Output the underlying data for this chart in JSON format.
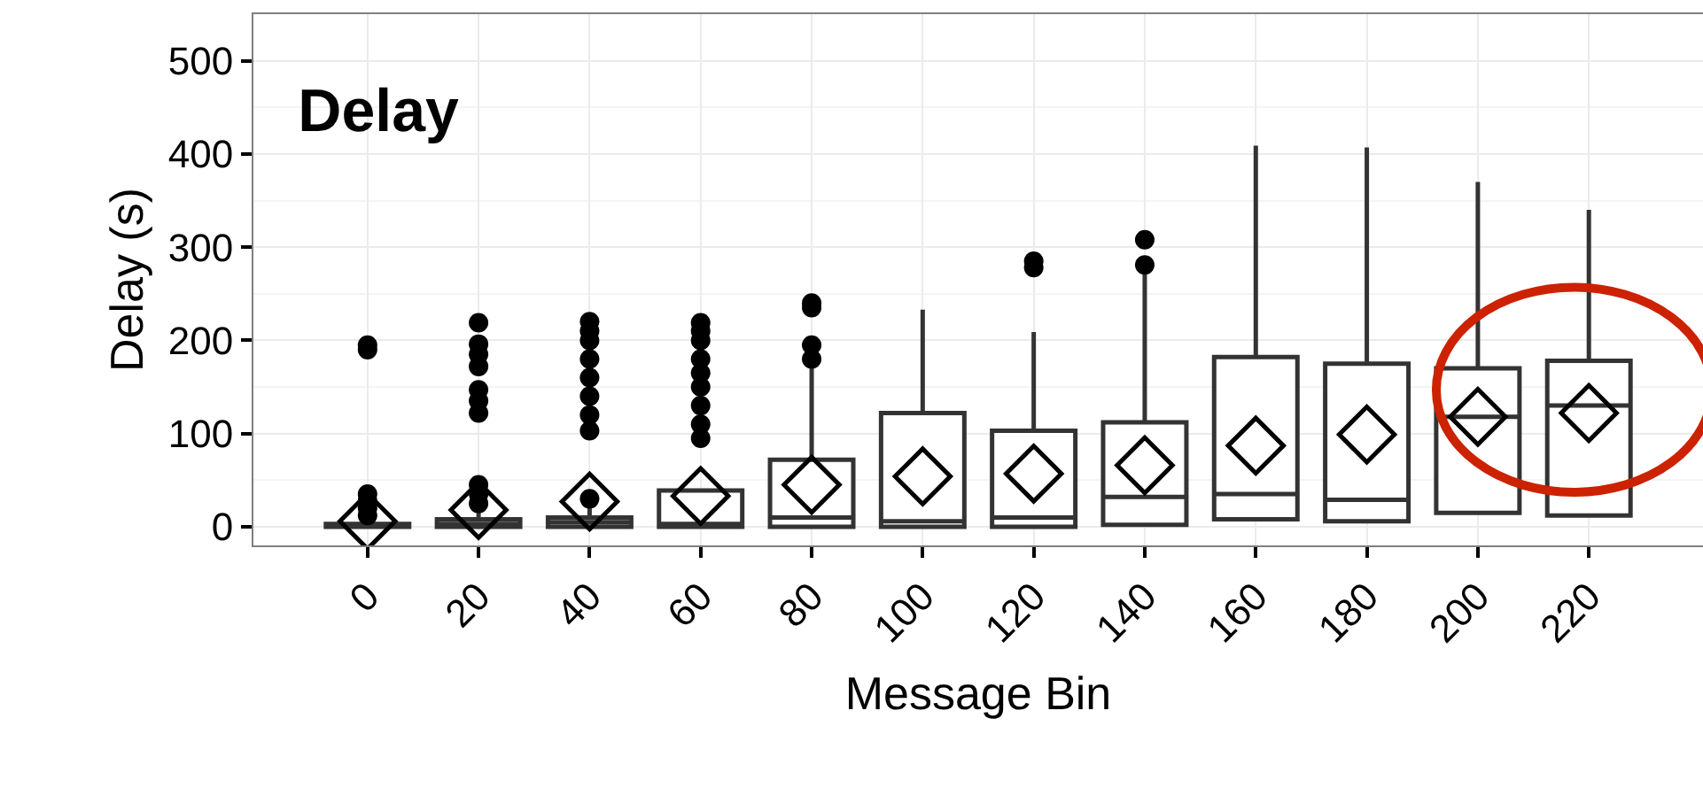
{
  "chart_data": {
    "type": "box",
    "title": "Delay",
    "xlabel": "Message Bin",
    "ylabel": "Delay (s)",
    "categories": [
      "0",
      "20",
      "40",
      "60",
      "80",
      "100",
      "120",
      "140",
      "160",
      "180",
      "200",
      "220"
    ],
    "boxes": [
      {
        "low": 0,
        "q1": 0,
        "median": 0,
        "q3": 3,
        "high": 10,
        "mean": 6,
        "outliers": [
          12,
          20,
          28,
          35,
          190,
          195
        ]
      },
      {
        "low": 0,
        "q1": 0,
        "median": 3,
        "q3": 8,
        "high": 15,
        "mean": 18,
        "outliers": [
          25,
          35,
          45,
          122,
          135,
          147,
          172,
          185,
          196,
          219
        ]
      },
      {
        "low": 0,
        "q1": 0,
        "median": 5,
        "q3": 10,
        "high": 20,
        "mean": 27,
        "outliers": [
          30,
          103,
          120,
          140,
          160,
          180,
          200,
          210,
          220
        ]
      },
      {
        "low": 0,
        "q1": 0,
        "median": 3,
        "q3": 39,
        "high": 39,
        "mean": 33,
        "outliers": [
          95,
          110,
          130,
          150,
          165,
          180,
          200,
          210,
          219
        ]
      },
      {
        "low": 0,
        "q1": 0,
        "median": 10,
        "q3": 72,
        "high": 173,
        "mean": 45,
        "outliers": [
          180,
          195,
          235,
          240
        ]
      },
      {
        "low": 0,
        "q1": 0,
        "median": 6,
        "q3": 122,
        "high": 233,
        "mean": 54
      },
      {
        "low": 0,
        "q1": 0,
        "median": 10,
        "q3": 103,
        "high": 209,
        "mean": 57,
        "outliers": [
          278,
          285
        ]
      },
      {
        "low": 2,
        "q1": 2,
        "median": 32,
        "q3": 112,
        "high": 277,
        "mean": 66,
        "outliers": [
          281,
          308
        ]
      },
      {
        "low": 8,
        "q1": 8,
        "median": 35,
        "q3": 182,
        "high": 409,
        "mean": 87
      },
      {
        "low": 6,
        "q1": 6,
        "median": 29,
        "q3": 175,
        "high": 407,
        "mean": 99
      },
      {
        "low": 15,
        "q1": 15,
        "median": 118,
        "q3": 170,
        "high": 370,
        "mean": 118
      },
      {
        "low": 12,
        "q1": 12,
        "median": 130,
        "q3": 178,
        "high": 340,
        "mean": 122
      }
    ],
    "ylim": [
      -20,
      550
    ],
    "yticks": [
      0,
      100,
      200,
      300,
      400,
      500
    ],
    "grid": true
  }
}
